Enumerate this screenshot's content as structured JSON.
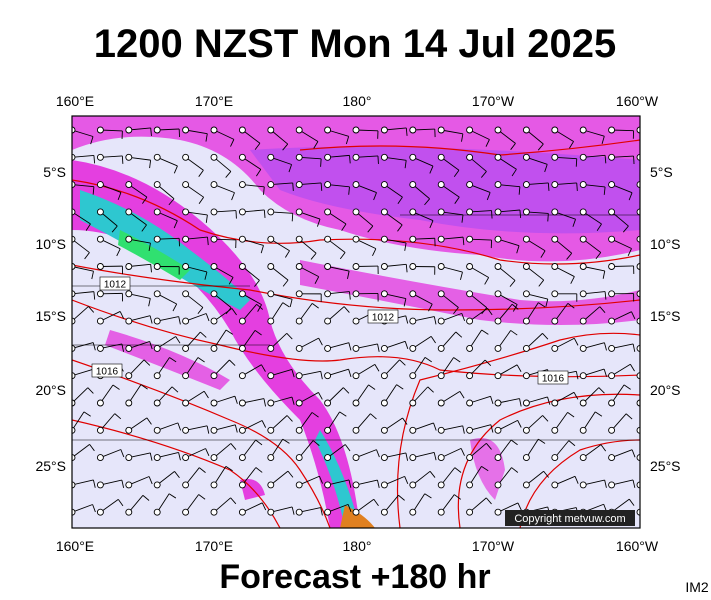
{
  "title": "1200 NZST Mon 14 Jul 2025",
  "footer": "Forecast +180 hr",
  "corner_label": "IM2",
  "copyright": "Copyright metvuw.com",
  "lon_labels": [
    "160°E",
    "170°E",
    "180°",
    "170°W",
    "160°W"
  ],
  "lat_labels": [
    "5°S",
    "10°S",
    "15°S",
    "20°S",
    "25°S"
  ],
  "isobar_labels": [
    "1012",
    "1012",
    "1016",
    "1016"
  ]
}
